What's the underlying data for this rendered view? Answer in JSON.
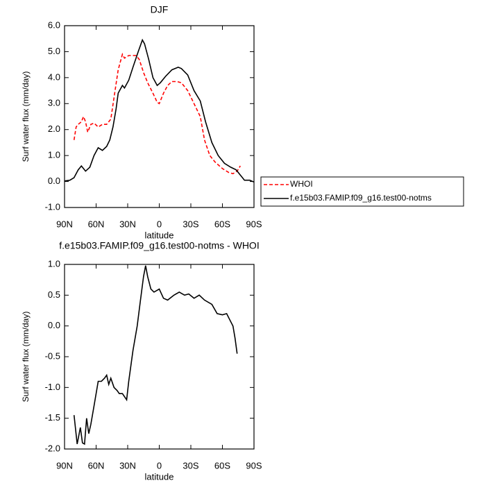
{
  "chart_data": [
    {
      "type": "line",
      "title": "DJF",
      "x_label": "latitude",
      "y_label": "Surf water flux (mm/day)",
      "xlim": [
        90,
        -90
      ],
      "xticks": [
        {
          "value": 90,
          "label": "90N"
        },
        {
          "value": 60,
          "label": "60N"
        },
        {
          "value": 30,
          "label": "30N"
        },
        0,
        {
          "value": -30,
          "label": "30S"
        },
        {
          "value": -60,
          "label": "60S"
        },
        {
          "value": -90,
          "label": "90S"
        }
      ],
      "ylim": [
        -1.0,
        6.0
      ],
      "yticks": [
        {
          "value": -1,
          "label": "-1.0"
        },
        {
          "value": 0,
          "label": "0.0"
        },
        {
          "value": 1,
          "label": "1.0"
        },
        {
          "value": 2,
          "label": "2.0"
        },
        {
          "value": 3,
          "label": "3.0"
        },
        {
          "value": 4,
          "label": "4.0"
        },
        {
          "value": 5,
          "label": "5.0"
        },
        {
          "value": 6,
          "label": "6.0"
        }
      ],
      "legend": "outside-right",
      "series": [
        {
          "name": "WHOI",
          "color": "#ff0000",
          "dash": true,
          "x": [
            81,
            79,
            77,
            74,
            72,
            70,
            68,
            65,
            62,
            58,
            54,
            50,
            46,
            42,
            39,
            35,
            33,
            29,
            22,
            19,
            15,
            11,
            6,
            2,
            0,
            -4,
            -8,
            -12,
            -17,
            -21,
            -27,
            -33,
            -39,
            -43,
            -48,
            -53,
            -60,
            -66,
            -70,
            -74,
            -77
          ],
          "values": [
            1.6,
            2.1,
            2.2,
            2.3,
            2.5,
            2.3,
            1.9,
            2.2,
            2.25,
            2.1,
            2.2,
            2.2,
            2.4,
            3.5,
            4.3,
            4.9,
            4.75,
            4.85,
            4.85,
            4.7,
            4.2,
            3.8,
            3.4,
            3.05,
            3.0,
            3.4,
            3.7,
            3.85,
            3.85,
            3.8,
            3.5,
            3.0,
            2.5,
            1.6,
            1.0,
            0.75,
            0.5,
            0.35,
            0.3,
            0.4,
            0.6
          ]
        },
        {
          "name": "f.e15b03.FAMIP.f09_g16.test00-notms",
          "color": "#000000",
          "dash": false,
          "x": [
            90,
            85,
            81,
            77,
            74,
            70,
            66,
            62,
            58,
            54,
            50,
            47,
            44,
            41,
            39,
            35,
            33,
            29,
            25,
            20,
            16,
            14,
            10,
            6,
            2,
            -1,
            -6,
            -12,
            -18,
            -21,
            -27,
            -33,
            -39,
            -44,
            -50,
            -56,
            -62,
            -68,
            -73,
            -77,
            -81,
            -86,
            -90
          ],
          "values": [
            0.02,
            0.05,
            0.15,
            0.45,
            0.6,
            0.4,
            0.55,
            1.0,
            1.3,
            1.2,
            1.35,
            1.6,
            2.1,
            2.8,
            3.4,
            3.7,
            3.6,
            3.9,
            4.4,
            5.0,
            5.45,
            5.3,
            4.7,
            4.0,
            3.7,
            3.8,
            4.05,
            4.3,
            4.4,
            4.35,
            4.1,
            3.5,
            3.1,
            2.3,
            1.5,
            1.0,
            0.7,
            0.55,
            0.45,
            0.25,
            0.05,
            0.05,
            -0.02
          ]
        }
      ]
    },
    {
      "type": "line",
      "title": "f.e15b03.FAMIP.f09_g16.test00-notms - WHOI",
      "x_label": "latitude",
      "y_label": "Surf water flux (mm/day)",
      "xlim": [
        90,
        -90
      ],
      "xticks": [
        {
          "value": 90,
          "label": "90N"
        },
        {
          "value": 60,
          "label": "60N"
        },
        {
          "value": 30,
          "label": "30N"
        },
        0,
        {
          "value": -30,
          "label": "30S"
        },
        {
          "value": -60,
          "label": "60S"
        },
        {
          "value": -90,
          "label": "90S"
        }
      ],
      "ylim": [
        -2.0,
        1.0
      ],
      "yticks": [
        {
          "value": -2,
          "label": "-2.0"
        },
        {
          "value": -1.5,
          "label": "-1.5"
        },
        {
          "value": -1,
          "label": "-1.0"
        },
        {
          "value": -0.5,
          "label": "-0.5"
        },
        {
          "value": 0,
          "label": "0.0"
        },
        {
          "value": 0.5,
          "label": "0.5"
        },
        {
          "value": 1,
          "label": "1.0"
        }
      ],
      "series": [
        {
          "color": "#000000",
          "dash": false,
          "x": [
            81,
            78,
            75,
            73,
            71,
            69,
            67,
            65,
            62,
            58,
            55,
            52,
            50,
            48,
            46,
            43,
            40,
            38,
            35,
            31,
            29,
            25,
            21,
            18,
            15,
            13,
            11,
            8,
            5,
            0,
            -4,
            -8,
            -14,
            -19,
            -24,
            -28,
            -33,
            -38,
            -43,
            -50,
            -55,
            -60,
            -64,
            -67,
            -70,
            -72,
            -74
          ],
          "values": [
            -1.45,
            -1.92,
            -1.65,
            -1.9,
            -1.92,
            -1.5,
            -1.75,
            -1.6,
            -1.3,
            -0.9,
            -0.9,
            -0.85,
            -0.8,
            -0.95,
            -0.85,
            -1.0,
            -1.05,
            -1.1,
            -1.1,
            -1.2,
            -0.9,
            -0.4,
            0.0,
            0.4,
            0.8,
            0.98,
            0.8,
            0.6,
            0.55,
            0.6,
            0.45,
            0.42,
            0.5,
            0.55,
            0.5,
            0.52,
            0.45,
            0.5,
            0.42,
            0.35,
            0.2,
            0.18,
            0.2,
            0.1,
            0.0,
            -0.2,
            -0.45
          ]
        }
      ]
    }
  ]
}
